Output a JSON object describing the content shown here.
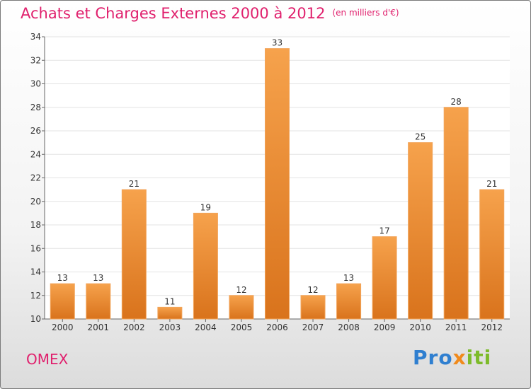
{
  "header": {
    "title": "Achats et Charges Externes 2000 à 2012",
    "subtitle": "(en milliers d'€)"
  },
  "footer": {
    "commune": "OMEX",
    "logo_text": "Proxiti"
  },
  "colors": {
    "title": "#e0206d",
    "bar_top": "#f6a24c",
    "bar_bottom": "#d9731c"
  },
  "chart_data": {
    "type": "bar",
    "title": "Achats et Charges Externes 2000 à 2012",
    "subtitle": "(en milliers d'€)",
    "categories": [
      "2000",
      "2001",
      "2002",
      "2003",
      "2004",
      "2005",
      "2006",
      "2007",
      "2008",
      "2009",
      "2010",
      "2011",
      "2012"
    ],
    "values": [
      13,
      13,
      21,
      11,
      19,
      12,
      33,
      12,
      13,
      17,
      25,
      28,
      21
    ],
    "ylim": [
      10,
      34
    ],
    "yticks": [
      10,
      12,
      14,
      16,
      18,
      20,
      22,
      24,
      26,
      28,
      30,
      32,
      34
    ],
    "grid": true,
    "legend": "none"
  }
}
